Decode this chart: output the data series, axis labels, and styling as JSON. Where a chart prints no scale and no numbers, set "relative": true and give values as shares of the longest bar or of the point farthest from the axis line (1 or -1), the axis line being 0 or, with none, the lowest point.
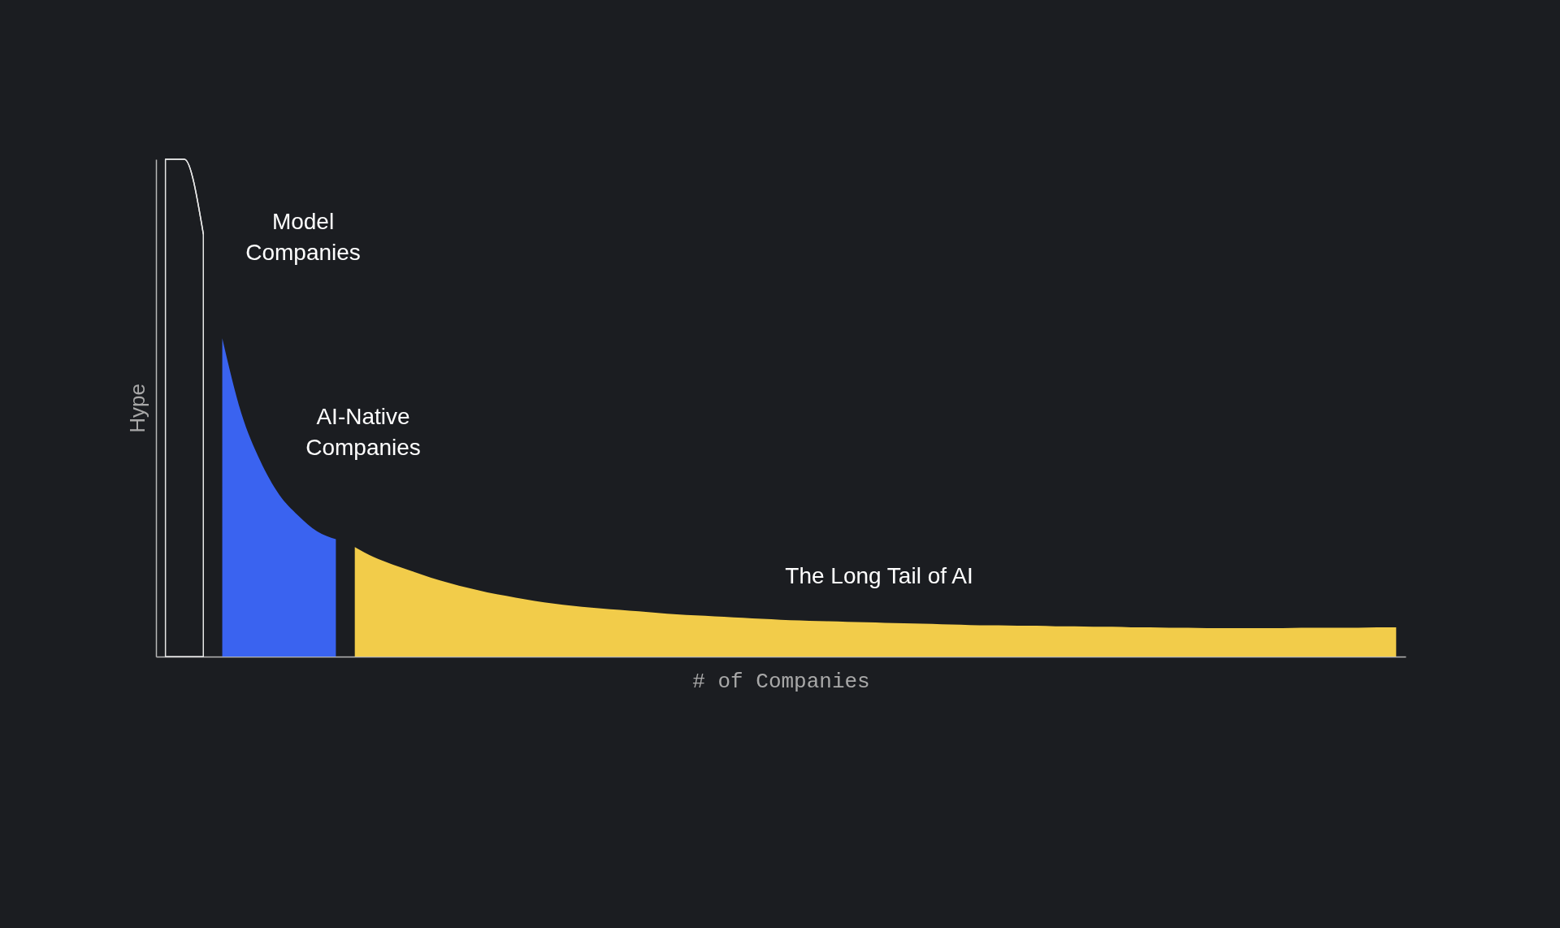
{
  "chart_data": {
    "type": "area",
    "relative": true,
    "xlabel": "# of Companies",
    "ylabel": "Hype",
    "grid": false,
    "legend": false,
    "categories": [
      null,
      null,
      null,
      null,
      null,
      null,
      null,
      null,
      null,
      null,
      null,
      null,
      null,
      null,
      null,
      null,
      null,
      null,
      null,
      null,
      null,
      null,
      null,
      null,
      null,
      null,
      null,
      null,
      null,
      null,
      null,
      null,
      null,
      null,
      null,
      null,
      null,
      null,
      null,
      null,
      null,
      null,
      null,
      null,
      null,
      null,
      null,
      null,
      null,
      null,
      null,
      null,
      null,
      null,
      null,
      null,
      null,
      null,
      null,
      null,
      null,
      null,
      null,
      null,
      null,
      null
    ],
    "series": [
      {
        "type": "line",
        "color": "#e6e6e6",
        "values": [
          1,
          1,
          0.85,
          null,
          null,
          null,
          null,
          null,
          null,
          null,
          null,
          null,
          null,
          null,
          null,
          null,
          null,
          null,
          null,
          null,
          null,
          null,
          null,
          null,
          null,
          null,
          null,
          null,
          null,
          null,
          null,
          null,
          null,
          null,
          null,
          null,
          null,
          null,
          null,
          null,
          null,
          null,
          null,
          null,
          null,
          null,
          null,
          null,
          null,
          null,
          null,
          null,
          null,
          null,
          null,
          null,
          null,
          null,
          null,
          null,
          null,
          null,
          null,
          null,
          null,
          null
        ]
      },
      {
        "color": "#3a63f0",
        "values": [
          null,
          null,
          null,
          0.64,
          0.49,
          0.394,
          0.326,
          0.284,
          0.252,
          0.236,
          null,
          null,
          null,
          null,
          null,
          null,
          null,
          null,
          null,
          null,
          null,
          null,
          null,
          null,
          null,
          null,
          null,
          null,
          null,
          null,
          null,
          null,
          null,
          null,
          null,
          null,
          null,
          null,
          null,
          null,
          null,
          null,
          null,
          null,
          null,
          null,
          null,
          null,
          null,
          null,
          null,
          null,
          null,
          null,
          null,
          null,
          null,
          null,
          null,
          null,
          null,
          null,
          null,
          null,
          null,
          null
        ]
      },
      {
        "color": "#f2cc4a",
        "values": [
          null,
          null,
          null,
          null,
          null,
          null,
          null,
          null,
          null,
          null,
          0.22,
          0.2,
          0.185,
          0.172,
          0.159,
          0.148,
          0.138,
          0.129,
          0.122,
          0.115,
          0.109,
          0.104,
          0.1,
          0.097,
          0.094,
          0.091,
          0.088,
          0.085,
          0.083,
          0.081,
          0.079,
          0.077,
          0.075,
          0.073,
          0.072,
          0.071,
          0.07,
          0.069,
          0.068,
          0.067,
          0.066,
          0.065,
          0.064,
          0.063,
          0.063,
          0.062,
          0.062,
          0.061,
          0.061,
          0.06,
          0.06,
          0.059,
          0.059,
          0.058,
          0.058,
          0.057,
          0.057,
          0.057,
          0.057,
          0.057,
          0.058,
          0.058,
          0.058,
          0.058,
          0.059,
          0.059
        ]
      }
    ],
    "annotations": [
      "Model\nCompanies",
      "AI-Native\nCompanies",
      "The Long Tail of AI"
    ]
  }
}
